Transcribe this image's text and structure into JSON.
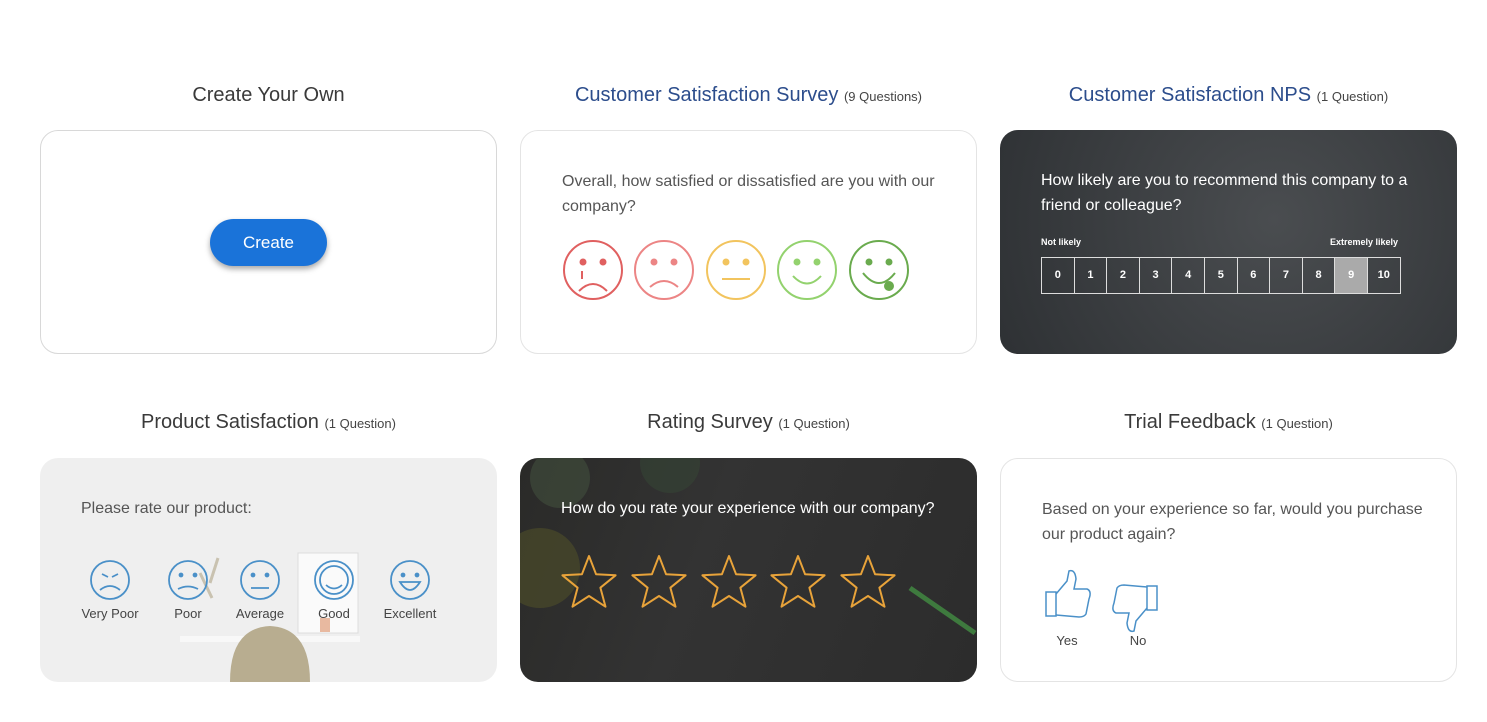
{
  "cards": [
    {
      "title": "Create Your Own",
      "button": "Create"
    },
    {
      "title": "Customer Satisfaction Survey",
      "count": "(9 Questions)",
      "question": "Overall, how satisfied or dissatisfied are you with our company?"
    },
    {
      "title": "Customer Satisfaction NPS",
      "count": "(1 Question)",
      "question": "How likely are you to recommend this company to a friend or colleague?",
      "scale_low": "Not likely",
      "scale_high": "Extremely likely",
      "scale": [
        0,
        1,
        2,
        3,
        4,
        5,
        6,
        7,
        8,
        9,
        10
      ]
    },
    {
      "title": "Product Satisfaction",
      "count": "(1 Question)",
      "question": "Please rate our product:",
      "options": [
        "Very Poor",
        "Poor",
        "Average",
        "Good",
        "Excellent"
      ]
    },
    {
      "title": "Rating Survey",
      "count": "(1 Question)",
      "question": "How do you rate your experience with our company?"
    },
    {
      "title": "Trial Feedback",
      "count": "(1 Question)",
      "question": "Based on your experience so far, would you purchase our product again?",
      "options": [
        "Yes",
        "No"
      ]
    }
  ]
}
